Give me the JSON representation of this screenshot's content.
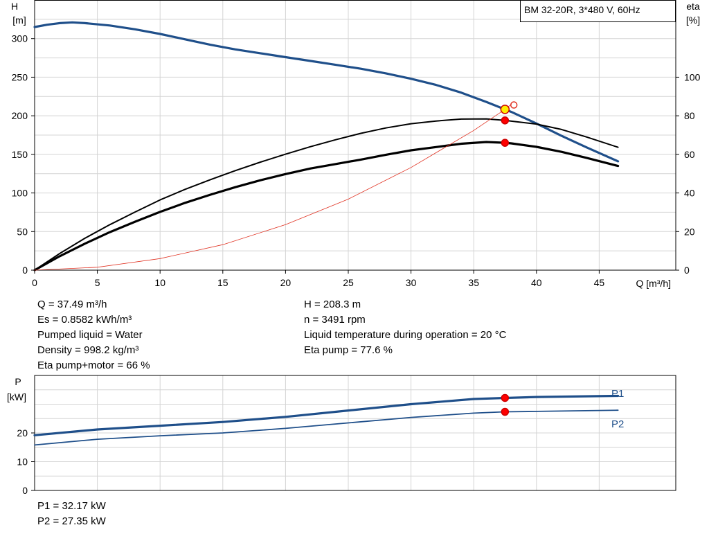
{
  "chart_data": [
    {
      "type": "line",
      "title": "BM 32-20R, 3*480 V, 60Hz",
      "xlabel": "Q [m³/h]",
      "ylabel_left": [
        "H",
        "[m]"
      ],
      "ylabel_right": [
        "eta",
        "[%]"
      ],
      "xlim": [
        0,
        50
      ],
      "ylim_left": [
        0,
        350
      ],
      "ylim_right": [
        0,
        140
      ],
      "x_ticks": [
        "0",
        "5",
        "10",
        "15",
        "20",
        "25",
        "30",
        "35",
        "40",
        "45"
      ],
      "y_ticks_left": [
        "0",
        "50",
        "100",
        "150",
        "200",
        "250",
        "300"
      ],
      "y_ticks_right": [
        "0",
        "20",
        "40",
        "60",
        "80",
        "100"
      ],
      "grid": true,
      "series": [
        {
          "axis": "left",
          "color": "#1f4f8a",
          "width": 3.2,
          "points": [
            [
              0,
              315
            ],
            [
              1,
              318
            ],
            [
              2,
              320
            ],
            [
              3,
              321
            ],
            [
              4,
              320
            ],
            [
              6,
              317
            ],
            [
              8,
              312
            ],
            [
              10,
              306
            ],
            [
              12,
              299
            ],
            [
              14,
              292
            ],
            [
              16,
              286
            ],
            [
              18,
              281
            ],
            [
              20,
              276
            ],
            [
              22,
              271
            ],
            [
              24,
              266
            ],
            [
              26,
              261
            ],
            [
              28,
              255
            ],
            [
              30,
              248
            ],
            [
              32,
              240
            ],
            [
              34,
              230
            ],
            [
              36,
              218
            ],
            [
              37.49,
              208.3
            ],
            [
              38,
              205
            ],
            [
              40,
              190
            ],
            [
              42,
              174
            ],
            [
              44,
              159
            ],
            [
              46.5,
              141
            ]
          ]
        },
        {
          "axis": "right",
          "color": "#000000",
          "width": 2.0,
          "points": [
            [
              0,
              0
            ],
            [
              2,
              8.6
            ],
            [
              4,
              16.5
            ],
            [
              6,
              23.6
            ],
            [
              8,
              30.1
            ],
            [
              10,
              36.4
            ],
            [
              12,
              41.9
            ],
            [
              14,
              46.9
            ],
            [
              16,
              51.6
            ],
            [
              18,
              56.0
            ],
            [
              20,
              60.1
            ],
            [
              22,
              64.0
            ],
            [
              24,
              67.6
            ],
            [
              26,
              70.9
            ],
            [
              28,
              73.7
            ],
            [
              30,
              75.9
            ],
            [
              32,
              77.3
            ],
            [
              34,
              78.3
            ],
            [
              36,
              78.4
            ],
            [
              37.49,
              77.6
            ],
            [
              38,
              77.2
            ],
            [
              40,
              75.7
            ],
            [
              42,
              72.9
            ],
            [
              44,
              69.0
            ],
            [
              46.5,
              63.7
            ]
          ]
        },
        {
          "axis": "right",
          "color": "#000000",
          "width": 3.2,
          "points": [
            [
              0,
              0
            ],
            [
              2,
              7.2
            ],
            [
              4,
              13.7
            ],
            [
              6,
              19.7
            ],
            [
              8,
              25.1
            ],
            [
              10,
              30.2
            ],
            [
              12,
              34.9
            ],
            [
              14,
              39.1
            ],
            [
              16,
              43.0
            ],
            [
              18,
              46.6
            ],
            [
              20,
              49.8
            ],
            [
              22,
              52.7
            ],
            [
              24,
              55.0
            ],
            [
              26,
              57.3
            ],
            [
              28,
              59.8
            ],
            [
              30,
              62.1
            ],
            [
              32,
              63.8
            ],
            [
              34,
              65.5
            ],
            [
              36,
              66.4
            ],
            [
              37.49,
              66.0
            ],
            [
              38,
              65.7
            ],
            [
              40,
              63.9
            ],
            [
              42,
              61.3
            ],
            [
              44,
              58.2
            ],
            [
              46.5,
              54.0
            ]
          ]
        },
        {
          "axis": "left",
          "color": "#e03020",
          "width": 0.8,
          "points": [
            [
              0,
              0
            ],
            [
              5,
              3.8
            ],
            [
              10,
              15
            ],
            [
              15,
              33
            ],
            [
              20,
              59
            ],
            [
              25,
              92
            ],
            [
              30,
              133
            ],
            [
              35,
              181
            ],
            [
              37.49,
              208.3
            ],
            [
              38,
              215
            ]
          ]
        }
      ],
      "markers": [
        {
          "axis": "left",
          "x": 37.49,
          "y": 208.3,
          "fill": "#ffee00",
          "stroke": "#cc0000",
          "r": 6
        },
        {
          "axis": "left",
          "x": 38.2,
          "y": 214,
          "fill": "none",
          "stroke": "#e03020",
          "r": 4.5
        },
        {
          "axis": "right",
          "x": 37.49,
          "y": 77.6,
          "fill": "#ff0000",
          "stroke": "#cc0000",
          "r": 5
        },
        {
          "axis": "right",
          "x": 37.49,
          "y": 66.0,
          "fill": "#ff0000",
          "stroke": "#cc0000",
          "r": 5
        }
      ]
    },
    {
      "type": "line",
      "xlim": [
        0,
        50
      ],
      "ylim": [
        0,
        40
      ],
      "ylabel": [
        "P",
        "[kW]"
      ],
      "y_ticks": [
        "0",
        "10",
        "20"
      ],
      "grid": true,
      "series": [
        {
          "name": "P1",
          "color": "#1f4f8a",
          "width": 3.2,
          "points": [
            [
              0,
              19.2
            ],
            [
              5,
              21.2
            ],
            [
              10,
              22.5
            ],
            [
              15,
              23.8
            ],
            [
              20,
              25.6
            ],
            [
              25,
              27.8
            ],
            [
              30,
              30.0
            ],
            [
              35,
              31.8
            ],
            [
              37.49,
              32.17
            ],
            [
              40,
              32.5
            ],
            [
              46.5,
              32.9
            ]
          ]
        },
        {
          "name": "P2",
          "color": "#1f4f8a",
          "width": 1.8,
          "points": [
            [
              0,
              15.8
            ],
            [
              5,
              17.8
            ],
            [
              10,
              19.0
            ],
            [
              15,
              20.0
            ],
            [
              20,
              21.6
            ],
            [
              25,
              23.5
            ],
            [
              30,
              25.4
            ],
            [
              35,
              26.9
            ],
            [
              37.49,
              27.35
            ],
            [
              40,
              27.5
            ],
            [
              46.5,
              27.9
            ]
          ]
        }
      ],
      "markers": [
        {
          "x": 37.49,
          "y": 32.17,
          "fill": "#ff0000",
          "stroke": "#cc0000",
          "r": 5
        },
        {
          "x": 37.49,
          "y": 27.35,
          "fill": "#ff0000",
          "stroke": "#cc0000",
          "r": 5
        }
      ]
    }
  ],
  "info_left": [
    "Q = 37.49 m³/h",
    "Es = 0.8582 kWh/m³",
    "Pumped liquid = Water",
    "Density = 998.2 kg/m³",
    "Eta pump+motor = 66 %"
  ],
  "info_right": [
    "H = 208.3 m",
    "n = 3491 rpm",
    "Liquid temperature during operation = 20 °C",
    "Eta pump = 77.6 %"
  ],
  "power_info": [
    "P1 = 32.17 kW",
    "P2 = 27.35 kW"
  ]
}
